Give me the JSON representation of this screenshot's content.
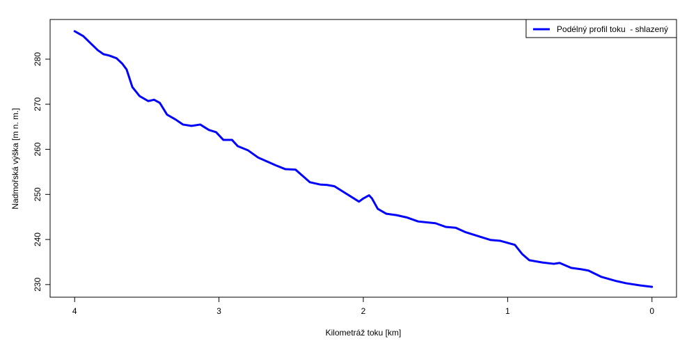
{
  "chart_data": {
    "type": "line",
    "x_label": "Kilometráž toku [km]",
    "y_label": "Nadmořská výška [m n. m.]",
    "x": [
      4.0,
      3.94,
      3.84,
      3.8,
      3.76,
      3.71,
      3.67,
      3.64,
      3.6,
      3.55,
      3.49,
      3.45,
      3.41,
      3.36,
      3.3,
      3.25,
      3.19,
      3.13,
      3.07,
      3.02,
      2.97,
      2.91,
      2.87,
      2.8,
      2.73,
      2.66,
      2.61,
      2.54,
      2.47,
      2.42,
      2.37,
      2.3,
      2.25,
      2.2,
      2.15,
      2.08,
      2.03,
      2.0,
      1.96,
      1.94,
      1.9,
      1.84,
      1.77,
      1.7,
      1.62,
      1.5,
      1.43,
      1.36,
      1.29,
      1.19,
      1.12,
      1.05,
      0.95,
      0.9,
      0.85,
      0.76,
      0.68,
      0.64,
      0.56,
      0.49,
      0.44,
      0.35,
      0.25,
      0.18,
      0.08,
      0.0
    ],
    "series": [
      {
        "name": "Podélný profil toku  - shlazený",
        "color": "#0000ff",
        "values": [
          286.2,
          285.1,
          282.0,
          281.1,
          280.8,
          280.2,
          279.0,
          277.7,
          273.8,
          271.8,
          270.7,
          271.0,
          270.3,
          267.7,
          266.6,
          265.5,
          265.2,
          265.5,
          264.3,
          263.8,
          262.1,
          262.1,
          260.7,
          259.8,
          258.2,
          257.2,
          256.5,
          255.6,
          255.5,
          254.1,
          252.7,
          252.2,
          252.1,
          251.8,
          250.8,
          249.4,
          248.4,
          249.1,
          249.8,
          249.1,
          246.8,
          245.7,
          245.4,
          244.9,
          244.0,
          243.6,
          242.8,
          242.6,
          241.6,
          240.6,
          239.9,
          239.7,
          238.8,
          236.8,
          235.4,
          234.9,
          234.6,
          234.8,
          233.7,
          233.4,
          233.1,
          231.7,
          230.8,
          230.3,
          229.8,
          229.5
        ]
      }
    ],
    "xlim": [
      4.17,
      -0.17
    ],
    "xticks": [
      4,
      3,
      2,
      1,
      0
    ],
    "ylim": [
      227.2,
      288.8
    ],
    "yticks": [
      230,
      240,
      250,
      260,
      270,
      280
    ],
    "legend_position": "top-right"
  }
}
